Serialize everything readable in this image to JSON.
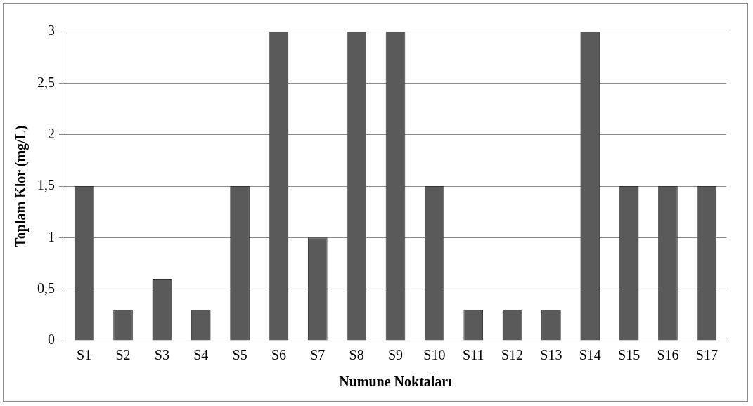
{
  "chart_data": {
    "type": "bar",
    "xlabel": "Numune Noktaları",
    "ylabel": "Toplam Klor (mg/L)",
    "categories": [
      "S1",
      "S2",
      "S3",
      "S4",
      "S5",
      "S6",
      "S7",
      "S8",
      "S9",
      "S10",
      "S11",
      "S12",
      "S13",
      "S14",
      "S15",
      "S16",
      "S17"
    ],
    "values": [
      1.5,
      0.3,
      0.6,
      0.3,
      1.5,
      3,
      1,
      3,
      3,
      1.5,
      0.3,
      0.3,
      0.3,
      3,
      1.5,
      1.5,
      1.5
    ],
    "color": "#5a5a5a",
    "ylim": [
      0,
      3
    ],
    "yticks": [
      0,
      {
        "value": 0.5,
        "label": "0,5"
      },
      1,
      {
        "value": 1.5,
        "label": "1,5"
      },
      2,
      {
        "value": 2.5,
        "label": "2,5"
      },
      3
    ],
    "grid": "y",
    "legend": false
  }
}
